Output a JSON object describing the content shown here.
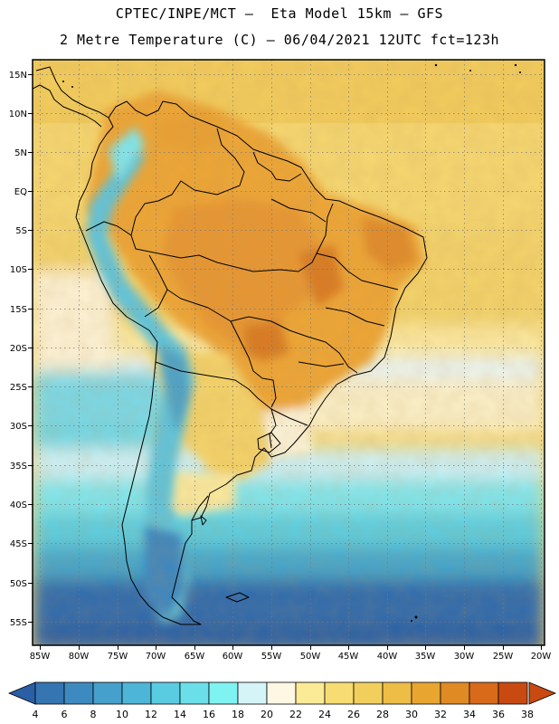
{
  "header": {
    "line1": "CPTEC/INPE/MCT –  Eta Model 15km – GFS",
    "line2": "2 Metre Temperature (C) – 06/04/2021 12UTC fct=123h"
  },
  "map": {
    "lat_labels": [
      "15N",
      "10N",
      "5N",
      "EQ",
      "5S",
      "10S",
      "15S",
      "20S",
      "25S",
      "30S",
      "35S",
      "40S",
      "45S",
      "50S",
      "55S"
    ],
    "lon_labels": [
      "85W",
      "80W",
      "75W",
      "70W",
      "65W",
      "60W",
      "55W",
      "50W",
      "45W",
      "40W",
      "35W",
      "30W",
      "25W",
      "20W"
    ]
  },
  "colorbar": {
    "values": [
      "4",
      "6",
      "8",
      "10",
      "12",
      "14",
      "16",
      "18",
      "20",
      "22",
      "24",
      "26",
      "28",
      "30",
      "32",
      "34",
      "36",
      "38"
    ],
    "colors": [
      "#2a5fa6",
      "#3575b2",
      "#3d8ac0",
      "#45a0cc",
      "#4db6d8",
      "#5acce2",
      "#6adfea",
      "#7ff2f2",
      "#d4f4f8",
      "#fdf7e4",
      "#fbeb96",
      "#f6dc72",
      "#f2ce5c",
      "#edbd45",
      "#e8a52f",
      "#e08a24",
      "#d86a1a",
      "#c84a10"
    ]
  },
  "chart_data": {
    "type": "map",
    "title": "2 Metre Temperature (C)",
    "model": "CPTEC/INPE/MCT Eta Model 15km - GFS",
    "valid": "06/04/2021 12UTC",
    "forecast_hours": 123,
    "lat_range": [
      "15N",
      "55S"
    ],
    "lon_range": [
      "85W",
      "20W"
    ],
    "colorbar_unit": "C",
    "colorbar_values": [
      4,
      6,
      8,
      10,
      12,
      14,
      16,
      18,
      20,
      22,
      24,
      26,
      28,
      30,
      32,
      34,
      36,
      38
    ]
  }
}
